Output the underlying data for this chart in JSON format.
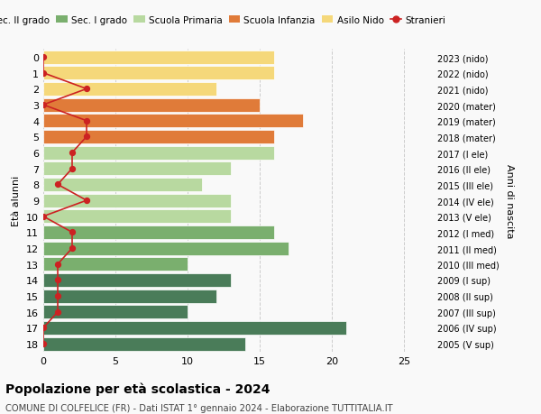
{
  "ages": [
    18,
    17,
    16,
    15,
    14,
    13,
    12,
    11,
    10,
    9,
    8,
    7,
    6,
    5,
    4,
    3,
    2,
    1,
    0
  ],
  "right_labels": [
    "2005 (V sup)",
    "2006 (IV sup)",
    "2007 (III sup)",
    "2008 (II sup)",
    "2009 (I sup)",
    "2010 (III med)",
    "2011 (II med)",
    "2012 (I med)",
    "2013 (V ele)",
    "2014 (IV ele)",
    "2015 (III ele)",
    "2016 (II ele)",
    "2017 (I ele)",
    "2018 (mater)",
    "2019 (mater)",
    "2020 (mater)",
    "2021 (nido)",
    "2022 (nido)",
    "2023 (nido)"
  ],
  "bar_values": [
    14,
    21,
    10,
    12,
    13,
    10,
    17,
    16,
    13,
    13,
    11,
    13,
    16,
    16,
    18,
    15,
    12,
    16,
    16
  ],
  "bar_colors": [
    "#4a7c59",
    "#4a7c59",
    "#4a7c59",
    "#4a7c59",
    "#4a7c59",
    "#7aaf6e",
    "#7aaf6e",
    "#7aaf6e",
    "#b8d9a0",
    "#b8d9a0",
    "#b8d9a0",
    "#b8d9a0",
    "#b8d9a0",
    "#e07b39",
    "#e07b39",
    "#e07b39",
    "#f5d87a",
    "#f5d87a",
    "#f5d87a"
  ],
  "stranieri_values": [
    0,
    0,
    1,
    1,
    1,
    1,
    2,
    2,
    0,
    3,
    1,
    2,
    2,
    3,
    3,
    0,
    3,
    0,
    0
  ],
  "legend_labels": [
    "Sec. II grado",
    "Sec. I grado",
    "Scuola Primaria",
    "Scuola Infanzia",
    "Asilo Nido",
    "Stranieri"
  ],
  "legend_colors": [
    "#4a7c59",
    "#7aaf6e",
    "#b8d9a0",
    "#e07b39",
    "#f5d87a",
    "#cc2222"
  ],
  "ylabel": "Età alunni",
  "right_ylabel": "Anni di nascita",
  "title": "Popolazione per età scolastica - 2024",
  "subtitle": "COMUNE DI COLFELICE (FR) - Dati ISTAT 1° gennaio 2024 - Elaborazione TUTTITALIA.IT",
  "xlim": [
    0,
    27
  ],
  "xticks": [
    0,
    5,
    10,
    15,
    20,
    25
  ],
  "background_color": "#f9f9f9",
  "grid_color": "#cccccc"
}
